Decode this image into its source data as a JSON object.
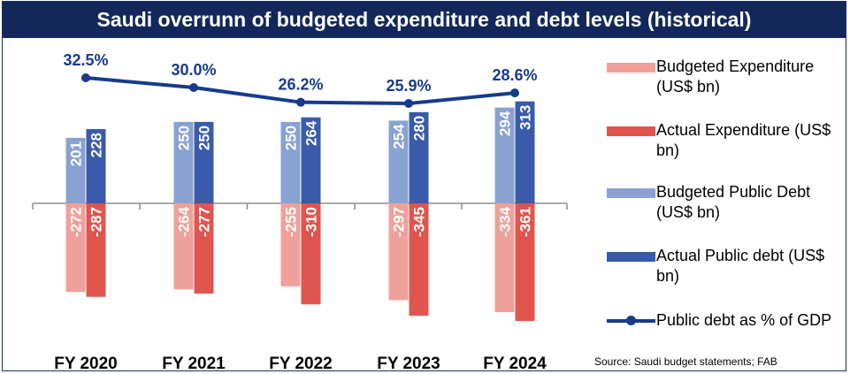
{
  "title": "Saudi overrunn of budgeted expenditure and debt levels (historical)",
  "source": "Source: Saudi budget statements; FAB",
  "colors": {
    "title_bg": "#13285a",
    "budgeted_expenditure": "#f0a09a",
    "actual_expenditure": "#e0554e",
    "budgeted_debt": "#8aa2d2",
    "actual_debt": "#3a5ba9",
    "debt_gdp_line": "#173a8c"
  },
  "legend": [
    {
      "label": "Budgeted Expenditure (US$ bn)",
      "type": "bar",
      "color_key": "budgeted_expenditure"
    },
    {
      "label": "Actual Expenditure (US$ bn)",
      "type": "bar",
      "color_key": "actual_expenditure"
    },
    {
      "label": "Budgeted Public Debt (US$ bn)",
      "type": "bar",
      "color_key": "budgeted_debt"
    },
    {
      "label": "Actual Public debt (US$ bn)",
      "type": "bar",
      "color_key": "actual_debt"
    },
    {
      "label": "Public debt as % of GDP",
      "type": "line",
      "color_key": "debt_gdp_line"
    }
  ],
  "chart_data": {
    "type": "bar",
    "categories": [
      "FY 2020",
      "FY 2021",
      "FY 2022",
      "FY 2023",
      "FY 2024"
    ],
    "series": [
      {
        "name": "Budgeted Expenditure (US$ bn)",
        "values": [
          -272,
          -264,
          -255,
          -297,
          -334
        ],
        "labels": [
          "-272",
          "-264",
          "-255",
          "-297",
          "-334"
        ]
      },
      {
        "name": "Actual Expenditure (US$ bn)",
        "values": [
          -287,
          -277,
          -310,
          -345,
          -361
        ],
        "labels": [
          "-287",
          "-277",
          "-310",
          "-345",
          "-361"
        ]
      },
      {
        "name": "Budgeted Public Debt (US$ bn)",
        "values": [
          201,
          250,
          250,
          254,
          294
        ],
        "labels": [
          "201",
          "250",
          "250",
          "254",
          "294"
        ]
      },
      {
        "name": "Actual Public debt (US$ bn)",
        "values": [
          228,
          250,
          264,
          280,
          313
        ],
        "labels": [
          "228",
          "250",
          "264",
          "280",
          "313"
        ]
      }
    ],
    "line_series": {
      "name": "Public debt as % of GDP",
      "values": [
        32.5,
        30.0,
        26.2,
        25.9,
        28.6
      ],
      "labels": [
        "32.5%",
        "30.0%",
        "26.2%",
        "25.9%",
        "28.6%"
      ]
    },
    "legend_position": "right",
    "grid": false
  }
}
